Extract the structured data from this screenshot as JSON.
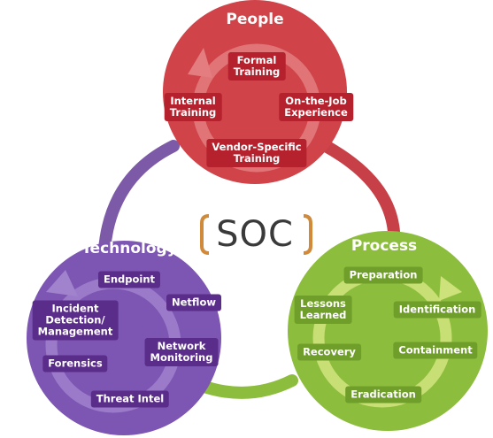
{
  "center": {
    "label": "SOC"
  },
  "colors": {
    "people": "#cf4349",
    "technology": "#7d55b3",
    "process": "#8dbd3d",
    "connector": "#7d5aa8",
    "bracket": "#d08a3a"
  },
  "people": {
    "title": "People",
    "items": [
      "Formal\nTraining",
      "Internal\nTraining",
      "On-the-Job\nExperience",
      "Vendor-Specific\nTraining"
    ]
  },
  "technology": {
    "title": "Technology",
    "items": [
      "Endpoint",
      "Incident\nDetection/\nManagement",
      "Netflow",
      "Network\nMonitoring",
      "Forensics",
      "Threat Intel"
    ]
  },
  "process": {
    "title": "Process",
    "items": [
      "Preparation",
      "Lessons\nLearned",
      "Identification",
      "Recovery",
      "Containment",
      "Eradication"
    ]
  }
}
